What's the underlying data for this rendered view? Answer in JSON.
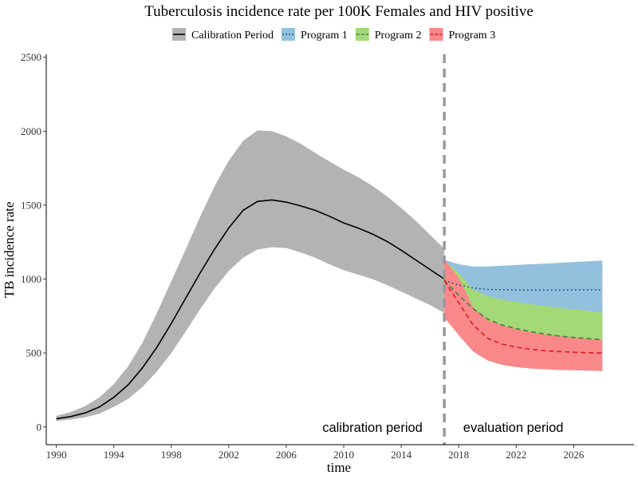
{
  "chart_data": {
    "type": "line",
    "title": "Tuberculosis incidence rate per 100K Females and HIV positive",
    "xlabel": "time",
    "ylabel": "TB incidence rate",
    "xlim": [
      1989.3,
      2030.2
    ],
    "ylim": [
      -120,
      2520
    ],
    "x_ticks": [
      1990,
      1994,
      1998,
      2002,
      2006,
      2010,
      2014,
      2018,
      2022,
      2026
    ],
    "y_ticks": [
      0,
      500,
      1000,
      1500,
      2000,
      2500
    ],
    "grid": false,
    "legend_position": "top",
    "divider_x": 2017,
    "annotations": [
      {
        "text": "calibration period",
        "x": 2012,
        "y": 0
      },
      {
        "text": "evaluation period",
        "x": 2021.8,
        "y": 0
      }
    ],
    "series": [
      {
        "name": "Calibration Period",
        "color": "#000000",
        "band_color": "#b3b3b3",
        "dash": "solid",
        "x": [
          1990,
          1991,
          1992,
          1993,
          1994,
          1995,
          1996,
          1997,
          1998,
          1999,
          2000,
          2001,
          2002,
          2003,
          2004,
          2005,
          2006,
          2007,
          2008,
          2009,
          2010,
          2011,
          2012,
          2013,
          2014,
          2015,
          2016,
          2017
        ],
        "y": [
          55,
          70,
          95,
          135,
          200,
          285,
          400,
          540,
          700,
          870,
          1040,
          1200,
          1345,
          1465,
          1525,
          1535,
          1520,
          1495,
          1465,
          1425,
          1380,
          1345,
          1305,
          1255,
          1195,
          1130,
          1065,
          1000
        ],
        "upper": [
          75,
          100,
          140,
          200,
          290,
          410,
          570,
          770,
          985,
          1200,
          1420,
          1625,
          1800,
          1935,
          2005,
          2000,
          1965,
          1915,
          1855,
          1795,
          1740,
          1690,
          1630,
          1560,
          1480,
          1395,
          1300,
          1205
        ],
        "lower": [
          40,
          50,
          65,
          90,
          135,
          190,
          270,
          375,
          500,
          645,
          795,
          935,
          1055,
          1145,
          1200,
          1215,
          1210,
          1180,
          1145,
          1100,
          1060,
          1030,
          1000,
          960,
          915,
          870,
          825,
          770
        ]
      },
      {
        "name": "Program 1",
        "color": "#2b5d8c",
        "band_color": "#93c1dd",
        "dash": "dotted",
        "x": [
          2017,
          2018,
          2019,
          2020,
          2021,
          2022,
          2023,
          2024,
          2025,
          2026,
          2027,
          2028
        ],
        "y": [
          990,
          960,
          940,
          930,
          928,
          927,
          926,
          926,
          926,
          927,
          928,
          928
        ],
        "upper": [
          1130,
          1100,
          1085,
          1085,
          1090,
          1095,
          1100,
          1105,
          1110,
          1115,
          1120,
          1125
        ],
        "lower": [
          870,
          830,
          800,
          785,
          778,
          775,
          772,
          770,
          768,
          767,
          766,
          765
        ]
      },
      {
        "name": "Program 2",
        "color": "#4a7f3a",
        "band_color": "#a3d977",
        "dash": "dashed",
        "x": [
          2017,
          2018,
          2019,
          2020,
          2021,
          2022,
          2023,
          2024,
          2025,
          2026,
          2027,
          2028
        ],
        "y": [
          990,
          890,
          800,
          730,
          690,
          665,
          645,
          628,
          615,
          605,
          597,
          590
        ],
        "upper": [
          1130,
          1040,
          930,
          885,
          860,
          845,
          830,
          818,
          805,
          795,
          785,
          775
        ],
        "lower": [
          870,
          790,
          700,
          640,
          605,
          585,
          570,
          557,
          545,
          535,
          525,
          515
        ]
      },
      {
        "name": "Program 3",
        "color": "#e31a1c",
        "band_color": "#f8888a",
        "dash": "dashed",
        "x": [
          2017,
          2018,
          2019,
          2020,
          2021,
          2022,
          2023,
          2024,
          2025,
          2026,
          2027,
          2028
        ],
        "y": [
          990,
          840,
          690,
          600,
          560,
          540,
          525,
          515,
          510,
          505,
          502,
          500
        ],
        "upper": [
          1135,
          1010,
          810,
          720,
          690,
          660,
          640,
          625,
          615,
          605,
          595,
          590
        ],
        "lower": [
          740,
          620,
          510,
          450,
          420,
          405,
          395,
          390,
          385,
          383,
          381,
          378
        ]
      }
    ]
  }
}
